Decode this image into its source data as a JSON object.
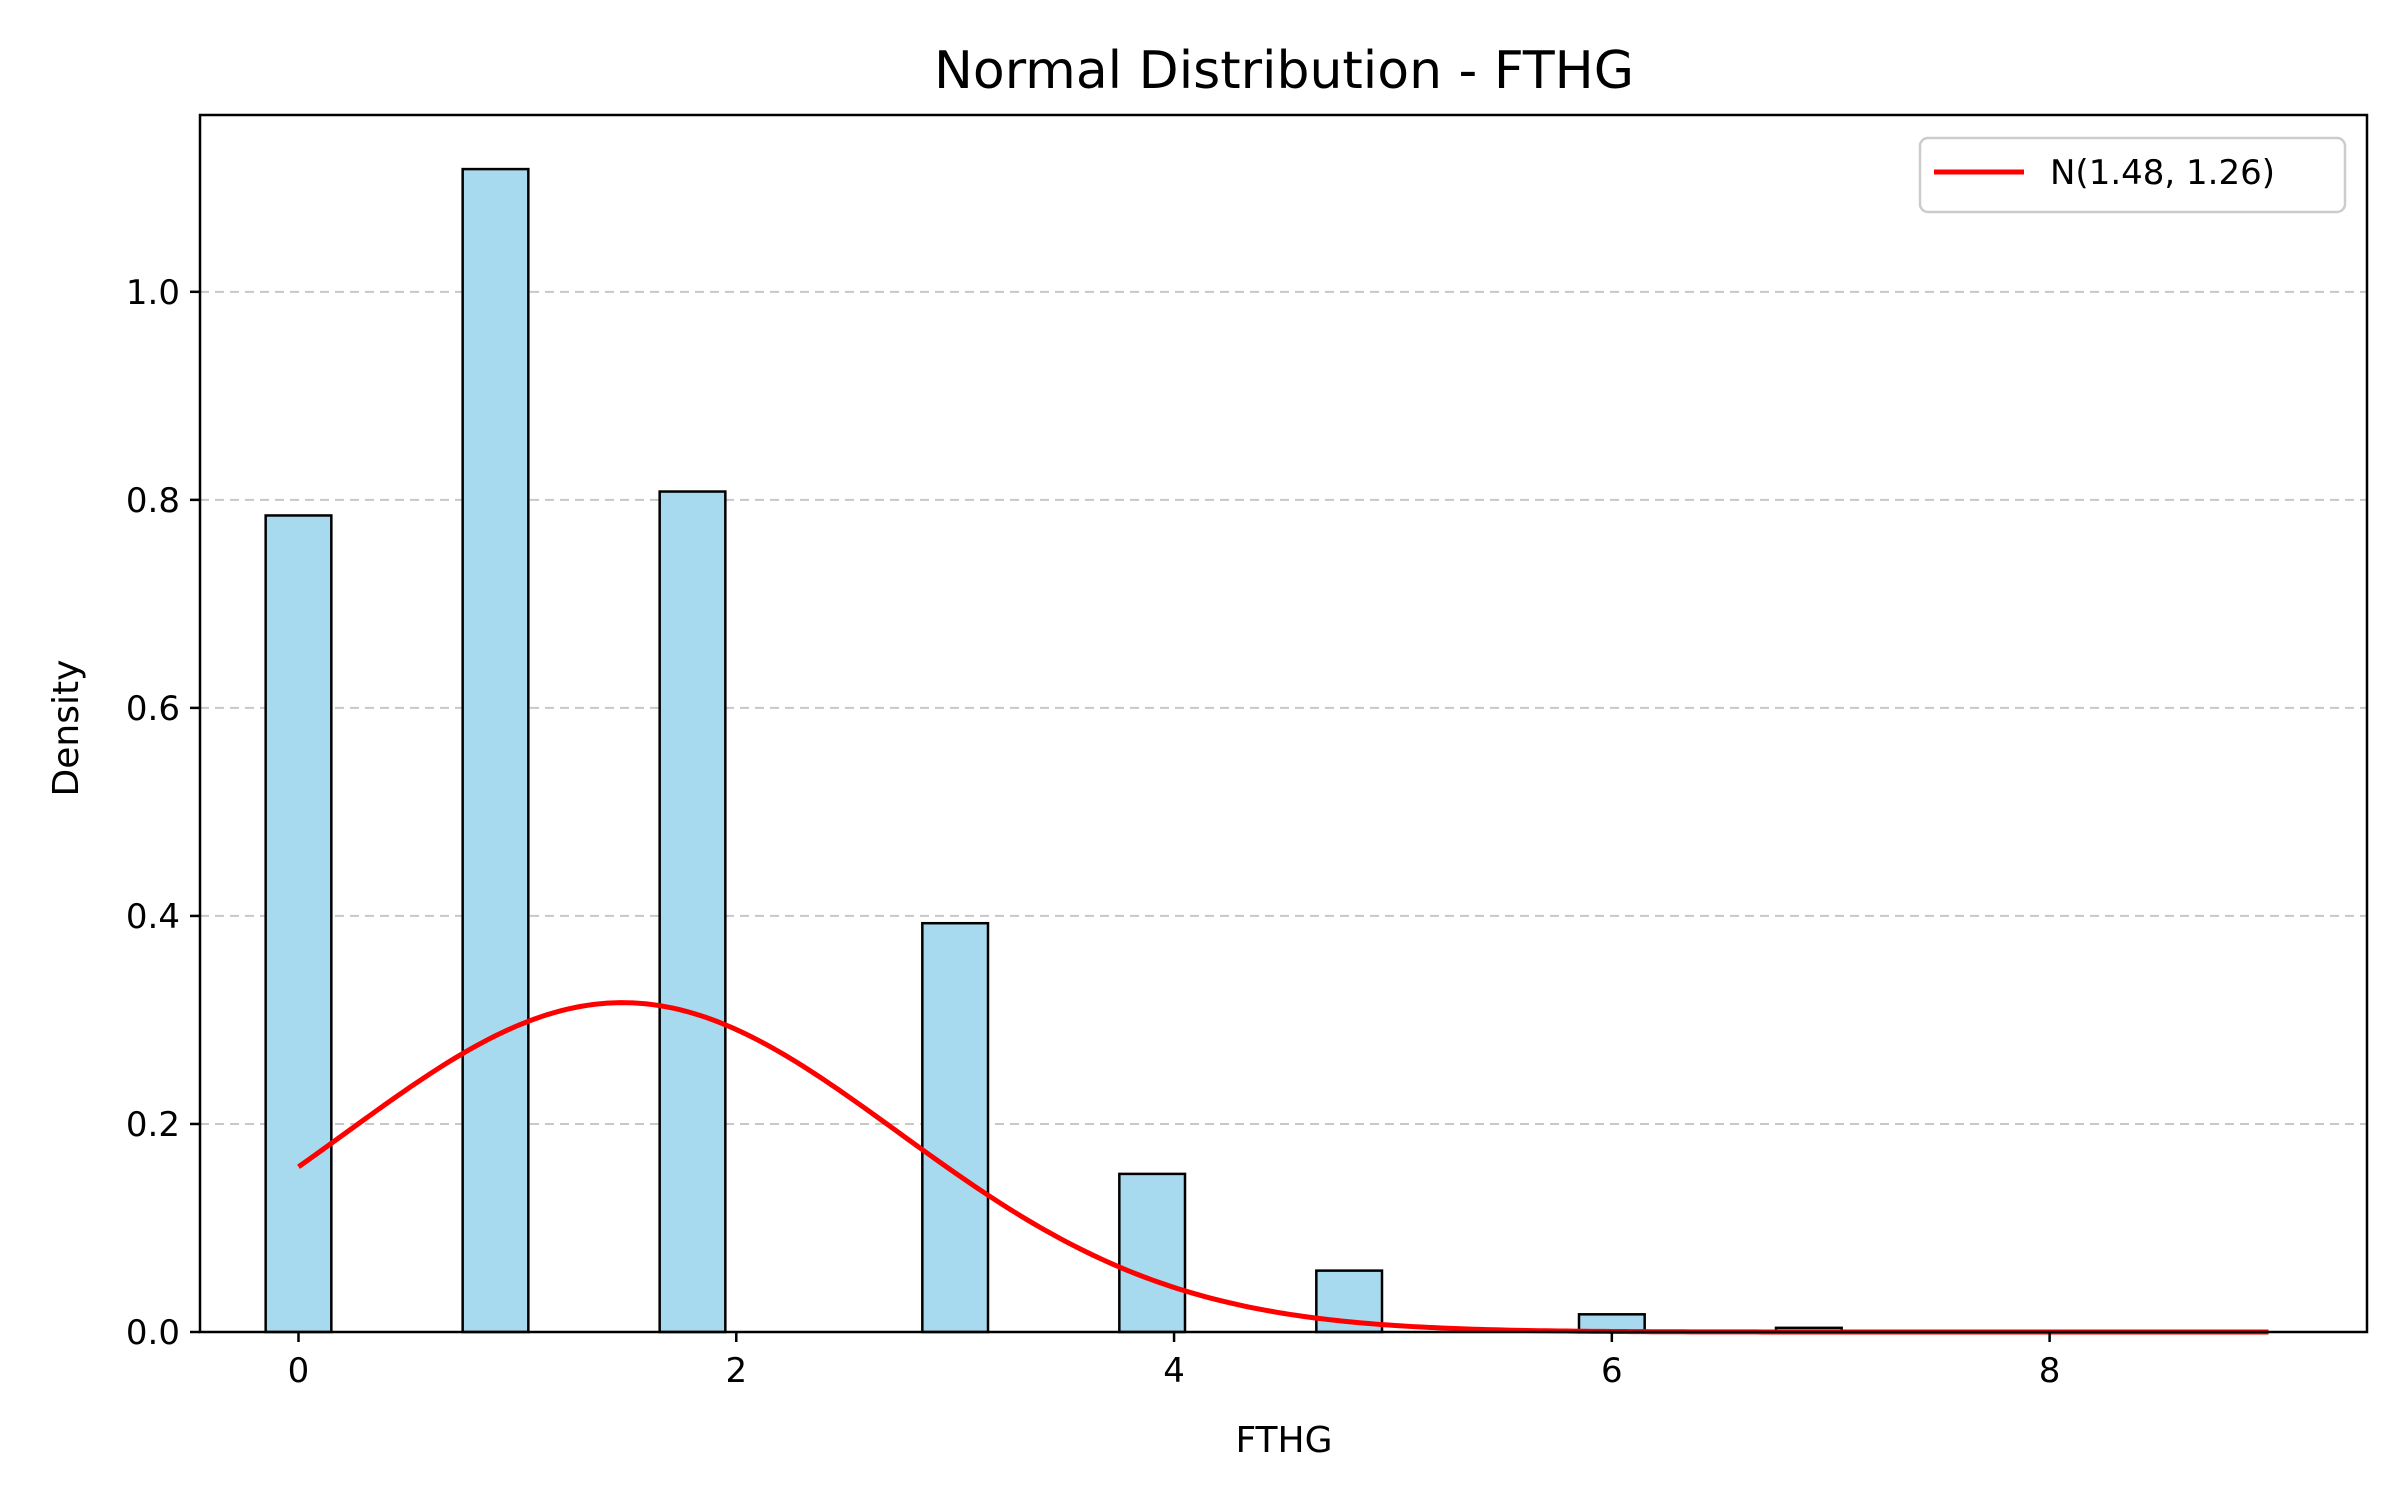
{
  "chart_data": {
    "type": "bar",
    "title": "Normal Distribution - FTHG",
    "xlabel": "FTHG",
    "ylabel": "Density",
    "xlim": [
      -0.45,
      9.45
    ],
    "ylim": [
      0,
      1.17
    ],
    "x_ticks": [
      0,
      2,
      4,
      6,
      8
    ],
    "y_ticks": [
      0.0,
      0.2,
      0.4,
      0.6,
      0.8,
      1.0
    ],
    "x_tick_labels": [
      "0",
      "2",
      "4",
      "6",
      "8"
    ],
    "y_tick_labels": [
      "0.0",
      "0.2",
      "0.4",
      "0.6",
      "0.8",
      "1.0"
    ],
    "grid": "y-dashed",
    "legend_position": "top-right",
    "bar_width": 0.3,
    "bars": [
      {
        "x": 0.0,
        "value": 0.785
      },
      {
        "x": 0.9,
        "value": 1.118
      },
      {
        "x": 1.8,
        "value": 0.808
      },
      {
        "x": 3.0,
        "value": 0.393
      },
      {
        "x": 3.9,
        "value": 0.152
      },
      {
        "x": 4.8,
        "value": 0.059
      },
      {
        "x": 6.0,
        "value": 0.017
      },
      {
        "x": 6.9,
        "value": 0.004
      },
      {
        "x": 7.8,
        "value": 0.001
      },
      {
        "x": 8.7,
        "value": 0.001
      }
    ],
    "series": [
      {
        "name": "N(1.48, 1.26)",
        "type": "line",
        "mean": 1.48,
        "std": 1.26,
        "x_range": [
          0,
          9
        ],
        "color": "#ff0000"
      }
    ],
    "colors": {
      "bar_fill": "#a8daef",
      "bar_edge": "#000000",
      "grid": "#c8c8c8",
      "curve": "#ff0000"
    }
  }
}
